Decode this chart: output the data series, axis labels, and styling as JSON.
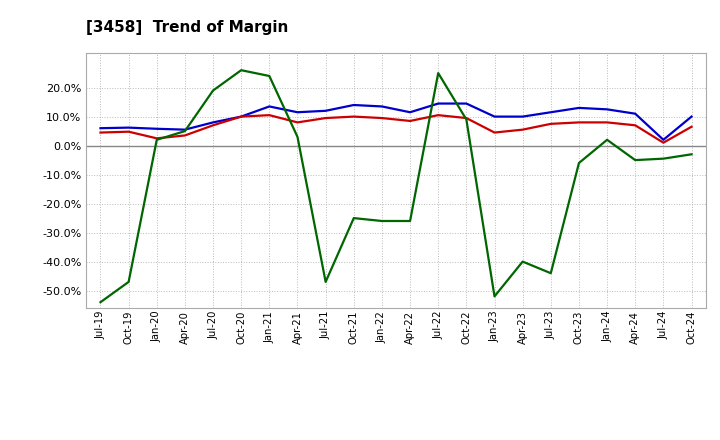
{
  "title": "[3458]  Trend of Margin",
  "title_fontsize": 11,
  "background_color": "#ffffff",
  "plot_background": "#ffffff",
  "x_labels": [
    "Jul-19",
    "Oct-19",
    "Jan-20",
    "Apr-20",
    "Jul-20",
    "Oct-20",
    "Jan-21",
    "Apr-21",
    "Jul-21",
    "Oct-21",
    "Jan-22",
    "Apr-22",
    "Jul-22",
    "Oct-22",
    "Jan-23",
    "Apr-23",
    "Jul-23",
    "Oct-23",
    "Jan-24",
    "Apr-24",
    "Jul-24",
    "Oct-24"
  ],
  "ordinary_income": [
    6.0,
    6.2,
    5.8,
    5.5,
    8.0,
    10.0,
    13.5,
    11.5,
    12.0,
    14.0,
    13.5,
    11.5,
    14.5,
    14.5,
    10.0,
    10.0,
    11.5,
    13.0,
    12.5,
    11.0,
    2.0,
    10.0
  ],
  "net_income": [
    4.5,
    4.8,
    2.5,
    3.5,
    7.0,
    10.0,
    10.5,
    8.0,
    9.5,
    10.0,
    9.5,
    8.5,
    10.5,
    9.5,
    4.5,
    5.5,
    7.5,
    8.0,
    8.0,
    7.0,
    1.0,
    6.5
  ],
  "operating_cashflow": [
    -54.0,
    -47.0,
    2.0,
    5.0,
    19.0,
    26.0,
    24.0,
    3.0,
    -47.0,
    -25.0,
    -26.0,
    -26.0,
    25.0,
    9.0,
    -52.0,
    -40.0,
    -44.0,
    -6.0,
    2.0,
    -5.0,
    -4.5,
    -3.0
  ],
  "ylim": [
    -56,
    32
  ],
  "yticks": [
    -50.0,
    -40.0,
    -30.0,
    -20.0,
    -10.0,
    0.0,
    10.0,
    20.0
  ],
  "line_colors": {
    "ordinary_income": "#0000cc",
    "net_income": "#cc0000",
    "operating_cashflow": "#006600"
  },
  "line_width": 1.6,
  "grid_color": "#bbbbbb",
  "zero_line_color": "#888888"
}
